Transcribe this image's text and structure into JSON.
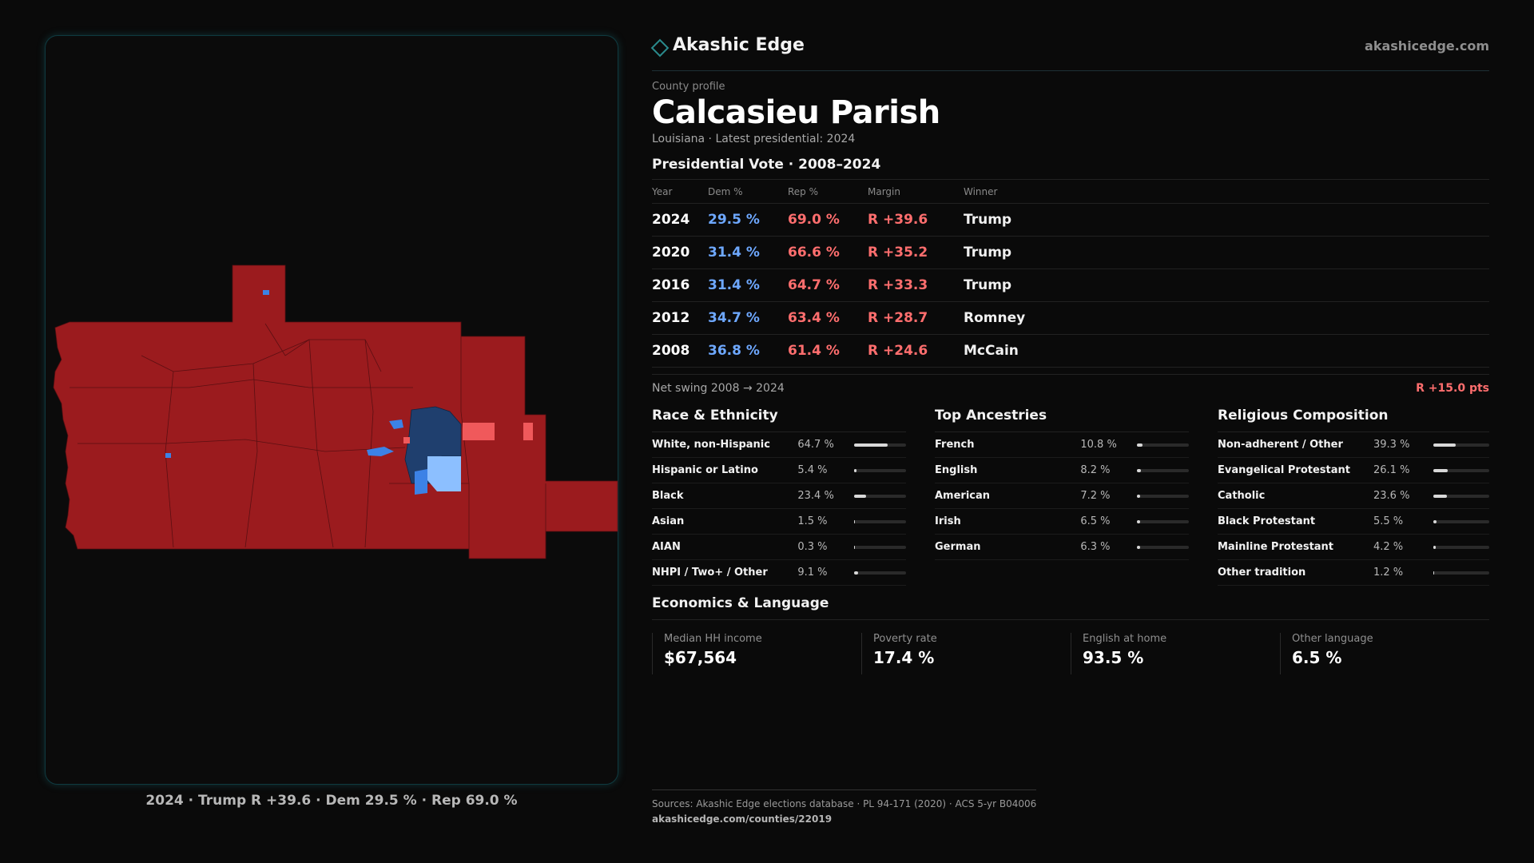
{
  "brand": {
    "name": "Akashic Edge",
    "url": "akashicedge.com"
  },
  "header": {
    "kicker": "County profile",
    "title": "Calcasieu Parish",
    "subtitle": "Louisiana · Latest presidential: 2024"
  },
  "votes": {
    "section_title": "Presidential Vote · 2008–2024",
    "columns": [
      "Year",
      "Dem %",
      "Rep %",
      "Margin",
      "Winner"
    ],
    "rows": [
      [
        "2024",
        "29.5 %",
        "69.0 %",
        "R +39.6",
        "Trump"
      ],
      [
        "2020",
        "31.4 %",
        "66.6 %",
        "R +35.2",
        "Trump"
      ],
      [
        "2016",
        "31.4 %",
        "64.7 %",
        "R +33.3",
        "Trump"
      ],
      [
        "2012",
        "34.7 %",
        "63.4 %",
        "R +28.7",
        "Romney"
      ],
      [
        "2008",
        "36.8 %",
        "61.4 %",
        "R +24.6",
        "McCain"
      ]
    ],
    "swing_label": "Net swing 2008 → 2024",
    "swing_value": "R +15.0 pts"
  },
  "race": {
    "title": "Race & Ethnicity",
    "items": [
      {
        "label": "White, non-Hispanic",
        "pct": "64.7 %",
        "value": 64.7
      },
      {
        "label": "Hispanic or Latino",
        "pct": "5.4 %",
        "value": 5.4
      },
      {
        "label": "Black",
        "pct": "23.4 %",
        "value": 23.4
      },
      {
        "label": "Asian",
        "pct": "1.5 %",
        "value": 1.5
      },
      {
        "label": "AIAN",
        "pct": "0.3 %",
        "value": 0.3
      },
      {
        "label": "NHPI / Two+ / Other",
        "pct": "9.1 %",
        "value": 9.1
      }
    ]
  },
  "ancestry": {
    "title": "Top Ancestries",
    "items": [
      {
        "label": "French",
        "pct": "10.8 %",
        "value": 10.8
      },
      {
        "label": "English",
        "pct": "8.2 %",
        "value": 8.2
      },
      {
        "label": "American",
        "pct": "7.2 %",
        "value": 7.2
      },
      {
        "label": "Irish",
        "pct": "6.5 %",
        "value": 6.5
      },
      {
        "label": "German",
        "pct": "6.3 %",
        "value": 6.3
      }
    ]
  },
  "religion": {
    "title": "Religious Composition",
    "items": [
      {
        "label": "Non-adherent / Other",
        "pct": "39.3 %",
        "value": 39.3
      },
      {
        "label": "Evangelical Protestant",
        "pct": "26.1 %",
        "value": 26.1
      },
      {
        "label": "Catholic",
        "pct": "23.6 %",
        "value": 23.6
      },
      {
        "label": "Black Protestant",
        "pct": "5.5 %",
        "value": 5.5
      },
      {
        "label": "Mainline Protestant",
        "pct": "4.2 %",
        "value": 4.2
      },
      {
        "label": "Other tradition",
        "pct": "1.2 %",
        "value": 1.2
      }
    ]
  },
  "economics": {
    "title": "Economics & Language",
    "items": [
      {
        "label": "Median HH income",
        "value": "$67,564"
      },
      {
        "label": "Poverty rate",
        "value": "17.4 %"
      },
      {
        "label": "English at home",
        "value": "93.5 %"
      },
      {
        "label": "Other language",
        "value": "6.5 %"
      }
    ]
  },
  "map": {
    "caption": "2024 · Trump R +39.6 · Dem 29.5 % · Rep 69.0 %",
    "colors": {
      "strong_rep": "#9b1b1e",
      "lean_rep": "#f0595b",
      "strong_dem": "#1f3f6e",
      "mid_dem": "#3c82e6",
      "lean_dem": "#8cbfff"
    }
  },
  "sources": {
    "text": "Sources: Akashic Edge elections database · PL 94-171 (2020) · ACS 5-yr B04006",
    "url": "akashicedge.com/counties/22019"
  },
  "bar_colors": {
    "fill": "#d8d8d8",
    "track": "#2a2a2a"
  }
}
